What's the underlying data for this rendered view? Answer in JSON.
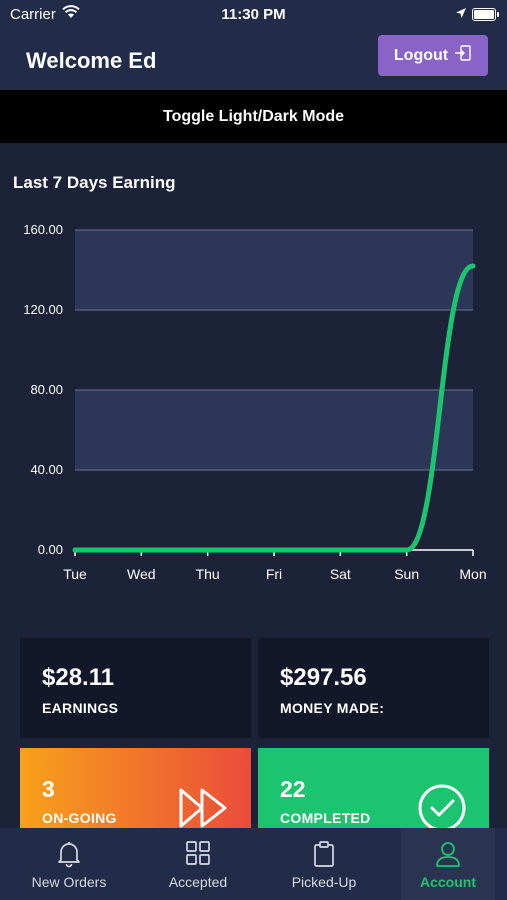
{
  "status_bar": {
    "carrier": "Carrier",
    "time": "11:30 PM"
  },
  "header": {
    "title": "Welcome Ed",
    "logout_label": "Logout"
  },
  "toggle_label": "Toggle Light/Dark Mode",
  "chart_title": "Last 7 Days Earning",
  "chart_data": {
    "type": "area",
    "categories": [
      "Tue",
      "Wed",
      "Thu",
      "Fri",
      "Sat",
      "Sun",
      "Mon"
    ],
    "values": [
      0,
      0,
      0,
      0,
      0,
      0,
      142
    ],
    "yticks": [
      "0.00",
      "40.00",
      "80.00",
      "120.00",
      "160.00"
    ],
    "ylim": [
      0,
      160
    ],
    "grid": true,
    "series_color": "#1dc46f"
  },
  "stats": {
    "earnings": {
      "amount": "$28.11",
      "label": "EARNINGS"
    },
    "money_made": {
      "amount": "$297.56",
      "label": "MONEY MADE:"
    },
    "ongoing": {
      "count": "3",
      "label": "ON-GOING"
    },
    "completed": {
      "count": "22",
      "label": "COMPLETED"
    }
  },
  "tabs": [
    {
      "label": "New Orders",
      "icon": "bell-icon"
    },
    {
      "label": "Accepted",
      "icon": "grid-icon"
    },
    {
      "label": "Picked-Up",
      "icon": "clipboard-icon"
    },
    {
      "label": "Account",
      "icon": "user-icon",
      "active": true
    }
  ],
  "colors": {
    "accent": "#8a63c8",
    "success": "#1dc46f",
    "warning": "#f06e2d"
  }
}
